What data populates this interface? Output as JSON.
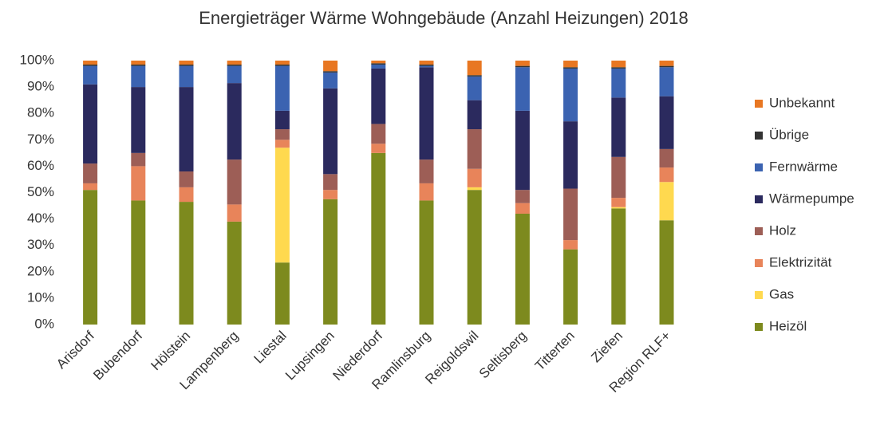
{
  "chart_data": {
    "type": "stacked_bar",
    "title": "Energieträger Wärme Wohngebäude (Anzahl Heizungen) 2018",
    "categories": [
      "Arisdorf",
      "Bubendorf",
      "Hölstein",
      "Lampenberg",
      "Liestal",
      "Lupsingen",
      "Niederdorf",
      "Ramlinsburg",
      "Reigoldswil",
      "Seltisberg",
      "Titterten",
      "Ziefen",
      "Region RLF+"
    ],
    "series": [
      {
        "name": "Heizöl",
        "color": "#7d8a1e",
        "values": [
          51,
          47,
          46.5,
          39,
          23.5,
          47.5,
          65,
          47,
          51,
          42,
          28.5,
          44,
          39.5
        ]
      },
      {
        "name": "Gas",
        "color": "#ffd94f",
        "values": [
          0,
          0,
          0,
          0,
          43.5,
          0,
          0,
          0,
          1,
          0,
          0,
          0.5,
          14.5
        ]
      },
      {
        "name": "Elektrizität",
        "color": "#e8845a",
        "values": [
          2.5,
          13,
          5.5,
          6.5,
          3,
          3.5,
          3.5,
          6.5,
          7,
          4,
          3.5,
          3.5,
          5.5
        ]
      },
      {
        "name": "Holz",
        "color": "#9d5e56",
        "values": [
          7.5,
          5,
          6,
          17,
          4,
          6,
          7.5,
          9,
          15,
          5,
          19.5,
          15.5,
          7
        ]
      },
      {
        "name": "Wärmepumpe",
        "color": "#2b2a5e",
        "values": [
          30,
          25,
          32,
          29,
          7,
          32.5,
          21,
          35,
          11,
          30,
          25.5,
          22.5,
          20
        ]
      },
      {
        "name": "Fernwärme",
        "color": "#3b63b1",
        "values": [
          7,
          8,
          8,
          6.5,
          17,
          6,
          1.5,
          0.5,
          9,
          16.5,
          20,
          11,
          11
        ]
      },
      {
        "name": "Übrige",
        "color": "#333333",
        "values": [
          0.5,
          0.5,
          0.5,
          0.5,
          0.5,
          0.5,
          0.5,
          0.5,
          0.5,
          0.5,
          0.5,
          0.5,
          0.5
        ]
      },
      {
        "name": "Unbekannt",
        "color": "#e87722",
        "values": [
          1.5,
          1.5,
          1.5,
          1.5,
          1.5,
          4,
          1,
          1.5,
          5.5,
          2,
          2.5,
          2.5,
          2
        ]
      }
    ],
    "ylim": [
      0,
      100
    ],
    "yticks": [
      {
        "value": 0,
        "label": "0%"
      },
      {
        "value": 10,
        "label": "10%"
      },
      {
        "value": 20,
        "label": "20%"
      },
      {
        "value": 30,
        "label": "30%"
      },
      {
        "value": 40,
        "label": "40%"
      },
      {
        "value": 50,
        "label": "50%"
      },
      {
        "value": 60,
        "label": "60%"
      },
      {
        "value": 70,
        "label": "70%"
      },
      {
        "value": 80,
        "label": "80%"
      },
      {
        "value": 90,
        "label": "90%"
      },
      {
        "value": 100,
        "label": "100%"
      }
    ],
    "legend": "right"
  }
}
